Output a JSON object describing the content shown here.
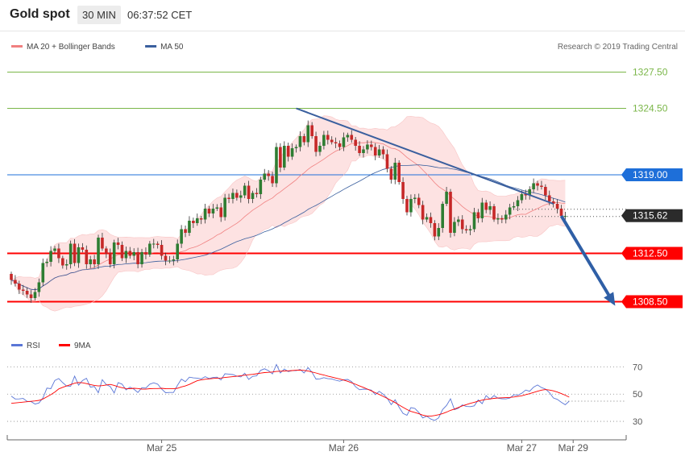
{
  "header": {
    "symbol": "Gold spot",
    "timeframe": "30 MIN",
    "time": "06:37:52 CET"
  },
  "legend": [
    {
      "label": "MA 20 + Bollinger Bands",
      "color": "#f08080"
    },
    {
      "label": "MA 50",
      "color": "#3a5f9e"
    }
  ],
  "credit": "Research © 2019 Trading Central",
  "colors": {
    "up": "#2e7d32",
    "down": "#c62828",
    "band_fill": "#fde2e2",
    "ma20": "#f08080",
    "ma50": "#3a5f9e",
    "green_level": "#7ab648",
    "red_level": "#ff0000",
    "blue_level": "#1e6fd9",
    "rsi": "#5a76d6",
    "rsi_ma": "#ff0000"
  },
  "chart_data": [
    {
      "type": "candlestick",
      "ylim": [
        1306.0,
        1330.0
      ],
      "x_ticks": [
        "Mar 25",
        "Mar 26",
        "Mar 27",
        "Mar 29"
      ],
      "levels": [
        {
          "value": 1327.5,
          "label": "1327.50",
          "style": "green"
        },
        {
          "value": 1324.5,
          "label": "1324.50",
          "style": "green"
        },
        {
          "value": 1319.0,
          "label": "1319.00",
          "style": "blue"
        },
        {
          "value": 1312.5,
          "label": "1312.50",
          "style": "red"
        },
        {
          "value": 1308.5,
          "label": "1308.50",
          "style": "red"
        }
      ],
      "last_price": {
        "value": 1315.62,
        "label": "1315.62"
      },
      "trendline": {
        "from": {
          "bar": 72,
          "price": 1324.5
        },
        "to": {
          "bar": 137,
          "price": 1316.6
        }
      },
      "projection": {
        "from": {
          "bar": 139,
          "price": 1315.6
        },
        "to": {
          "bar": 152,
          "price": 1308.5
        }
      },
      "candles": [
        [
          1310.8,
          1310.3
        ],
        [
          1310.3,
          1310.0
        ],
        [
          1310.0,
          1309.5
        ],
        [
          1309.5,
          1309.4
        ],
        [
          1309.4,
          1309.1
        ],
        [
          1309.1,
          1308.8
        ],
        [
          1308.8,
          1309.3
        ],
        [
          1309.3,
          1310.1
        ],
        [
          1310.1,
          1311.7
        ],
        [
          1311.7,
          1311.8
        ],
        [
          1311.8,
          1312.7
        ],
        [
          1312.7,
          1312.9
        ],
        [
          1312.9,
          1312.1
        ],
        [
          1312.1,
          1311.5
        ],
        [
          1311.5,
          1311.6
        ],
        [
          1311.6,
          1313.3
        ],
        [
          1313.3,
          1311.7
        ],
        [
          1311.7,
          1313.0
        ],
        [
          1313.0,
          1312.8
        ],
        [
          1312.8,
          1311.6
        ],
        [
          1311.6,
          1312.0
        ],
        [
          1312.0,
          1311.6
        ],
        [
          1311.6,
          1313.8
        ],
        [
          1313.8,
          1312.9
        ],
        [
          1312.9,
          1312.5
        ],
        [
          1312.5,
          1311.6
        ],
        [
          1311.6,
          1313.4
        ],
        [
          1313.4,
          1313.2
        ],
        [
          1313.2,
          1312.1
        ],
        [
          1312.1,
          1312.7
        ],
        [
          1312.7,
          1312.3
        ],
        [
          1312.3,
          1312.6
        ],
        [
          1312.6,
          1311.6
        ],
        [
          1311.6,
          1312.6
        ],
        [
          1312.6,
          1312.4
        ],
        [
          1312.4,
          1313.3
        ],
        [
          1313.3,
          1313.3
        ],
        [
          1313.3,
          1313.2
        ],
        [
          1313.2,
          1312.3
        ],
        [
          1312.3,
          1311.9
        ],
        [
          1311.9,
          1311.9
        ],
        [
          1311.9,
          1312.0
        ],
        [
          1312.0,
          1313.3
        ],
        [
          1313.3,
          1314.5
        ],
        [
          1314.5,
          1314.2
        ],
        [
          1314.2,
          1315.2
        ],
        [
          1315.2,
          1315.0
        ],
        [
          1315.0,
          1315.4
        ],
        [
          1315.4,
          1315.3
        ],
        [
          1315.3,
          1316.2
        ],
        [
          1316.2,
          1315.8
        ],
        [
          1315.8,
          1316.2
        ],
        [
          1316.2,
          1316.3
        ],
        [
          1316.3,
          1315.5
        ],
        [
          1315.5,
          1317.1
        ],
        [
          1317.1,
          1317.0
        ],
        [
          1317.0,
          1317.5
        ],
        [
          1317.5,
          1317.1
        ],
        [
          1317.1,
          1317.3
        ],
        [
          1317.3,
          1318.1
        ],
        [
          1318.1,
          1317.0
        ],
        [
          1317.0,
          1317.5
        ],
        [
          1317.5,
          1317.4
        ],
        [
          1317.4,
          1318.6
        ],
        [
          1318.6,
          1319.1
        ],
        [
          1319.1,
          1318.9
        ],
        [
          1318.9,
          1318.3
        ],
        [
          1318.3,
          1321.3
        ],
        [
          1321.3,
          1319.6
        ],
        [
          1319.6,
          1321.4
        ],
        [
          1321.4,
          1320.5
        ],
        [
          1320.5,
          1321.2
        ],
        [
          1321.2,
          1321.3
        ],
        [
          1321.3,
          1322.2
        ],
        [
          1322.2,
          1321.7
        ],
        [
          1321.7,
          1323.1
        ],
        [
          1323.1,
          1322.2
        ],
        [
          1322.2,
          1320.9
        ],
        [
          1320.9,
          1321.4
        ],
        [
          1321.4,
          1322.3
        ],
        [
          1322.3,
          1321.9
        ],
        [
          1321.9,
          1321.7
        ],
        [
          1321.7,
          1321.6
        ],
        [
          1321.6,
          1321.3
        ],
        [
          1321.3,
          1322.1
        ],
        [
          1322.1,
          1322.3
        ],
        [
          1322.3,
          1321.9
        ],
        [
          1321.9,
          1321.4
        ],
        [
          1321.4,
          1320.8
        ],
        [
          1320.8,
          1321.1
        ],
        [
          1321.1,
          1321.5
        ],
        [
          1321.5,
          1321.3
        ],
        [
          1321.3,
          1320.6
        ],
        [
          1320.6,
          1321.1
        ],
        [
          1321.1,
          1320.7
        ],
        [
          1320.7,
          1319.5
        ],
        [
          1319.5,
          1318.6
        ],
        [
          1318.6,
          1320.0
        ],
        [
          1320.0,
          1318.4
        ],
        [
          1318.4,
          1317.0
        ],
        [
          1317.0,
          1315.9
        ],
        [
          1315.9,
          1317.0
        ],
        [
          1317.0,
          1317.1
        ],
        [
          1317.1,
          1316.5
        ],
        [
          1316.5,
          1315.3
        ],
        [
          1315.3,
          1315.5
        ],
        [
          1315.5,
          1315.0
        ],
        [
          1315.0,
          1313.9
        ],
        [
          1313.9,
          1314.6
        ],
        [
          1314.6,
          1316.6
        ],
        [
          1316.6,
          1317.6
        ],
        [
          1317.6,
          1314.2
        ],
        [
          1314.2,
          1315.1
        ],
        [
          1315.1,
          1315.3
        ],
        [
          1315.3,
          1314.5
        ],
        [
          1314.5,
          1314.4
        ],
        [
          1314.4,
          1314.5
        ],
        [
          1314.5,
          1315.9
        ],
        [
          1315.9,
          1315.4
        ],
        [
          1315.4,
          1316.7
        ],
        [
          1316.7,
          1316.1
        ],
        [
          1316.1,
          1316.4
        ],
        [
          1316.4,
          1315.3
        ],
        [
          1315.3,
          1315.4
        ],
        [
          1315.4,
          1315.3
        ],
        [
          1315.3,
          1315.7
        ],
        [
          1315.7,
          1316.3
        ],
        [
          1316.3,
          1316.4
        ],
        [
          1316.4,
          1316.9
        ],
        [
          1316.9,
          1317.4
        ],
        [
          1317.4,
          1317.3
        ],
        [
          1317.3,
          1317.8
        ],
        [
          1317.8,
          1318.3
        ],
        [
          1318.3,
          1318.1
        ],
        [
          1318.1,
          1318.0
        ],
        [
          1318.0,
          1317.3
        ],
        [
          1317.3,
          1316.8
        ],
        [
          1316.8,
          1316.6
        ],
        [
          1316.6,
          1316.2
        ],
        [
          1316.2,
          1315.6
        ],
        [
          1315.6,
          1315.6
        ]
      ]
    },
    {
      "type": "line",
      "legend": [
        "RSI",
        "9MA"
      ],
      "ylim": [
        20,
        85
      ],
      "y_ticks": [
        30,
        50,
        70
      ],
      "series": [
        {
          "name": "RSI",
          "values": [
            48.5,
            46.4,
            46.5,
            46.8,
            44.7,
            44.5,
            42.7,
            43.5,
            47.2,
            54.4,
            54.0,
            60.0,
            61.4,
            58.4,
            55.9,
            55.8,
            63.2,
            56.6,
            60.0,
            61.6,
            55.1,
            55.6,
            51.0,
            60.6,
            57.0,
            55.5,
            50.8,
            58.4,
            57.3,
            53.1,
            55.1,
            53.6,
            51.2,
            54.7,
            54.4,
            57.3,
            58.3,
            57.3,
            53.7,
            51.0,
            51.2,
            51.2,
            56.4,
            61.0,
            59.1,
            62.4,
            61.9,
            61.7,
            61.2,
            62.8,
            61.4,
            62.2,
            62.4,
            60.4,
            64.9,
            64.7,
            64.3,
            63.2,
            62.6,
            65.3,
            60.8,
            63.0,
            63.4,
            67.4,
            68.6,
            67.2,
            64.8,
            71.7,
            65.5,
            68.4,
            66.5,
            67.2,
            67.2,
            68.1,
            65.5,
            69.4,
            66.0,
            61.0,
            61.2,
            62.1,
            61.3,
            61.1,
            60.2,
            59.5,
            60.5,
            60.8,
            59.2,
            55.4,
            53.2,
            53.7,
            53.5,
            52.9,
            49.6,
            52.0,
            49.9,
            47.1,
            42.3,
            45.9,
            40.4,
            35.9,
            34.5,
            40.1,
            39.5,
            36.5,
            32.5,
            33.8,
            31.7,
            30.7,
            32.6,
            38.7,
            41.7,
            46.6,
            38.6,
            39.7,
            42.1,
            40.9,
            40.8,
            41.4,
            45.7,
            43.0,
            48.9,
            46.3,
            48.9,
            47.0,
            46.6,
            46.5,
            47.1,
            49.5,
            49.2,
            50.6,
            53.0,
            52.1,
            55.1,
            56.7,
            54.8,
            53.7,
            51.1,
            47.2,
            46.1,
            44.0,
            42.2,
            44.8
          ]
        },
        {
          "name": "9MA",
          "values": [
            43.2,
            43.5,
            43.8,
            44.1,
            44.4,
            44.7,
            45.0,
            45.4,
            46.4,
            48.0,
            49.6,
            51.5,
            53.8,
            55.0,
            56.0,
            57.0,
            58.0,
            58.5,
            58.3,
            57.7,
            57.0,
            56.4,
            56.0,
            56.2,
            56.7,
            57.1,
            56.4,
            55.4,
            54.7,
            54.1,
            54.0,
            54.3,
            54.1,
            53.7,
            53.6,
            54.0,
            54.1,
            54.1,
            54.3,
            54.0,
            53.9,
            53.9,
            54.3,
            55.3,
            56.0,
            57.1,
            58.5,
            59.8,
            60.4,
            60.9,
            61.2,
            61.5,
            61.7,
            61.8,
            62.2,
            62.5,
            62.8,
            63.1,
            63.5,
            63.9,
            64.2,
            64.5,
            64.9,
            65.4,
            65.8,
            66.0,
            66.2,
            66.6,
            66.8,
            67.0,
            67.1,
            67.3,
            67.5,
            67.6,
            67.4,
            66.9,
            66.2,
            65.5,
            64.7,
            64.0,
            63.2,
            62.5,
            61.8,
            61.1,
            60.3,
            59.4,
            58.3,
            57.2,
            56.0,
            54.9,
            53.7,
            52.4,
            51.0,
            49.7,
            48.3,
            46.9,
            45.3,
            43.8,
            42.0,
            40.3,
            38.7,
            37.3,
            36.5,
            35.6,
            34.6,
            33.9,
            33.8,
            34.3,
            34.9,
            35.7,
            36.8,
            38.1,
            39.0,
            40.2,
            41.4,
            42.3,
            43.2,
            44.0,
            44.9,
            45.6,
            46.1,
            46.5,
            46.9,
            47.1,
            47.3,
            47.4,
            47.6,
            47.9,
            48.3,
            48.8,
            49.6,
            50.3,
            51.2,
            52.1,
            52.9,
            53.3,
            53.0,
            52.4,
            51.5,
            50.4,
            49.2,
            47.8
          ]
        }
      ]
    }
  ]
}
